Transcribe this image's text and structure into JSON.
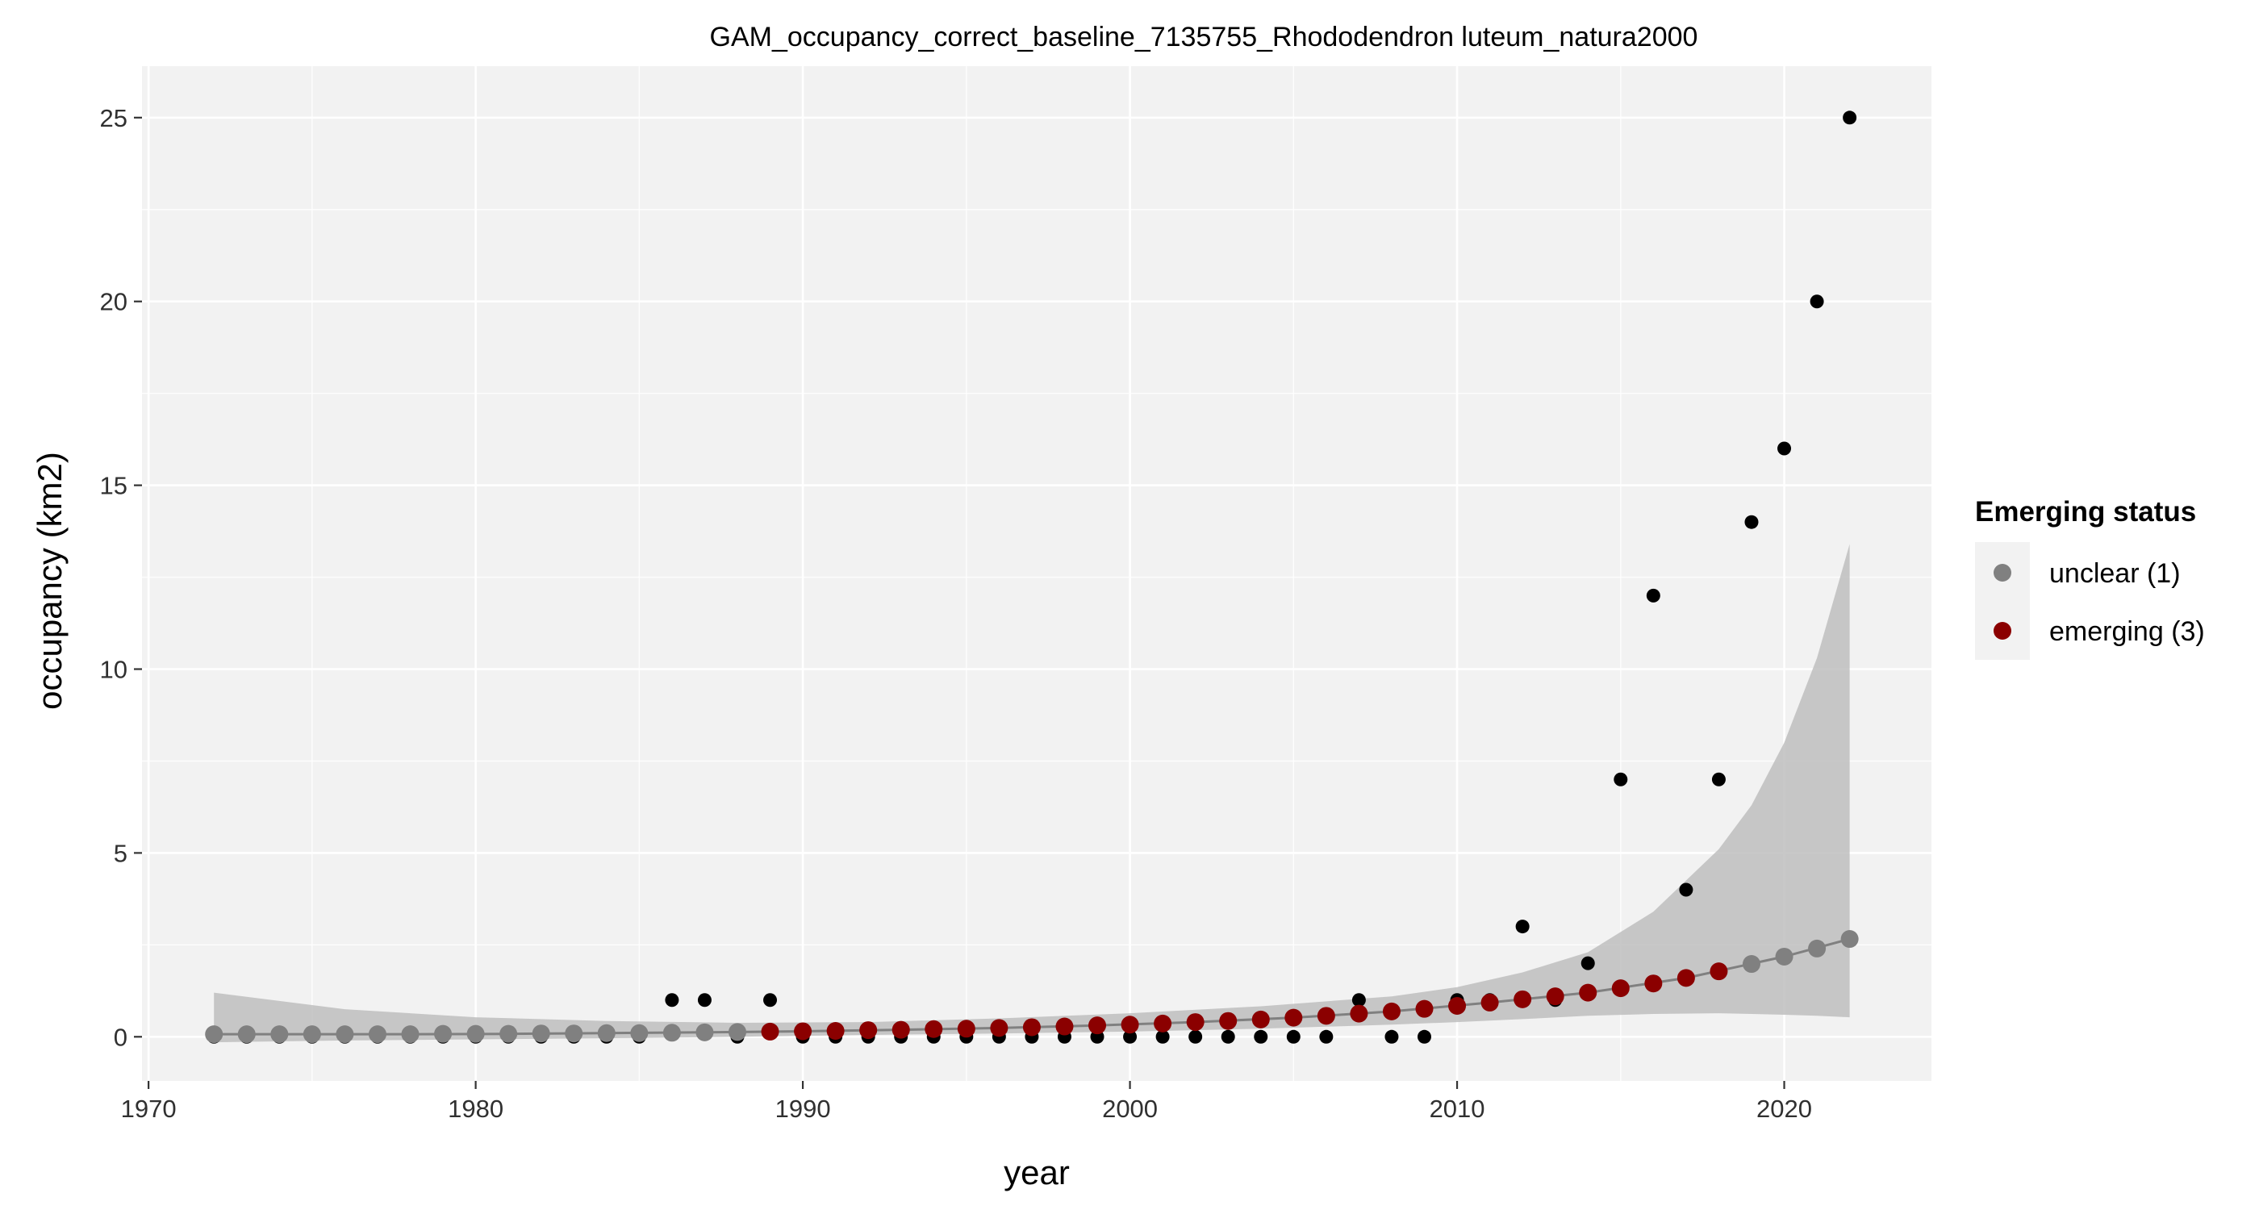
{
  "chart_data": {
    "type": "scatter",
    "title": "GAM_occupancy_correct_baseline_7135755_Rhododendron luteum_natura2000",
    "xlabel": "year",
    "ylabel": "occupancy (km2)",
    "xlim": [
      1969.8,
      2024.5
    ],
    "ylim": [
      -1.2,
      26.4
    ],
    "x_ticks": [
      1970,
      1980,
      1990,
      2000,
      2010,
      2020
    ],
    "y_ticks": [
      0,
      5,
      10,
      15,
      20,
      25
    ],
    "x_tick_labels": [
      "1970",
      "1980",
      "1990",
      "2000",
      "2010",
      "2020"
    ],
    "y_tick_labels": [
      "0",
      "5",
      "10",
      "15",
      "20",
      "25"
    ],
    "grid": true,
    "legend_position": "right",
    "colors": {
      "panel_background": "#f2f2f2",
      "grid_major": "#ffffff",
      "observed": "#000000",
      "ribbon": "#bebebe",
      "line": "#808080",
      "unclear": "#808080",
      "emerging": "#8b0000"
    },
    "legend": {
      "title": "Emerging status",
      "entries": [
        {
          "label": "unclear (1)",
          "color": "#808080"
        },
        {
          "label": "emerging (3)",
          "color": "#8b0000"
        }
      ]
    },
    "observed": {
      "x": [
        1972,
        1973,
        1974,
        1975,
        1976,
        1977,
        1978,
        1979,
        1980,
        1981,
        1982,
        1983,
        1984,
        1985,
        1986,
        1987,
        1988,
        1989,
        1990,
        1991,
        1992,
        1993,
        1994,
        1995,
        1996,
        1997,
        1998,
        1999,
        2000,
        2001,
        2002,
        2003,
        2004,
        2005,
        2006,
        2007,
        2008,
        2009,
        2010,
        2011,
        2012,
        2013,
        2014,
        2015,
        2016,
        2017,
        2018,
        2019,
        2020,
        2021,
        2022
      ],
      "y": [
        0,
        0,
        0,
        0,
        0,
        0,
        0,
        0,
        0,
        0,
        0,
        0,
        0,
        0,
        1,
        1,
        0,
        1,
        0,
        0,
        0,
        0,
        0,
        0,
        0,
        0,
        0,
        0,
        0,
        0,
        0,
        0,
        0,
        0,
        0,
        1,
        0,
        0,
        1,
        1,
        3,
        1,
        2,
        7,
        12,
        4,
        7,
        14,
        16,
        20,
        25
      ]
    },
    "series": [
      {
        "name": "unclear (1)",
        "x": [
          1972,
          1973,
          1974,
          1975,
          1976,
          1977,
          1978,
          1979,
          1980,
          1981,
          1982,
          1983,
          1984,
          1985,
          1986,
          1987,
          1988,
          2019,
          2020,
          2021,
          2022
        ],
        "y": [
          0.07,
          0.07,
          0.07,
          0.07,
          0.07,
          0.07,
          0.07,
          0.08,
          0.08,
          0.08,
          0.09,
          0.09,
          0.1,
          0.1,
          0.11,
          0.12,
          0.13,
          1.98,
          2.18,
          2.4,
          2.66
        ]
      },
      {
        "name": "emerging (3)",
        "x": [
          1989,
          1990,
          1991,
          1992,
          1993,
          1994,
          1995,
          1996,
          1997,
          1998,
          1999,
          2000,
          2001,
          2002,
          2003,
          2004,
          2005,
          2006,
          2007,
          2008,
          2009,
          2010,
          2011,
          2012,
          2013,
          2014,
          2015,
          2016,
          2017,
          2018
        ],
        "y": [
          0.14,
          0.15,
          0.16,
          0.18,
          0.19,
          0.21,
          0.22,
          0.24,
          0.26,
          0.28,
          0.31,
          0.33,
          0.36,
          0.4,
          0.43,
          0.47,
          0.52,
          0.57,
          0.63,
          0.69,
          0.76,
          0.84,
          0.93,
          1.02,
          1.1,
          1.2,
          1.32,
          1.45,
          1.6,
          1.78
        ]
      }
    ],
    "fit_line": {
      "x": [
        1972,
        1975,
        1978,
        1981,
        1984,
        1987,
        1990,
        1993,
        1996,
        1999,
        2002,
        2005,
        2008,
        2011,
        2014,
        2017,
        2020,
        2022
      ],
      "y": [
        0.07,
        0.07,
        0.07,
        0.08,
        0.1,
        0.12,
        0.15,
        0.19,
        0.24,
        0.31,
        0.4,
        0.52,
        0.69,
        0.93,
        1.2,
        1.6,
        2.18,
        2.66
      ]
    },
    "ribbon": {
      "x": [
        1972,
        1976,
        1980,
        1984,
        1988,
        1992,
        1996,
        2000,
        2004,
        2008,
        2010,
        2012,
        2014,
        2016,
        2018,
        2019,
        2020,
        2021,
        2022
      ],
      "lower": [
        -0.15,
        -0.1,
        -0.07,
        -0.04,
        0,
        0.05,
        0.09,
        0.14,
        0.22,
        0.33,
        0.4,
        0.48,
        0.57,
        0.62,
        0.64,
        0.62,
        0.6,
        0.57,
        0.53
      ],
      "upper": [
        1.2,
        0.75,
        0.53,
        0.43,
        0.38,
        0.4,
        0.5,
        0.64,
        0.83,
        1.1,
        1.35,
        1.75,
        2.3,
        3.4,
        5.1,
        6.3,
        8.0,
        10.3,
        13.4
      ]
    }
  }
}
